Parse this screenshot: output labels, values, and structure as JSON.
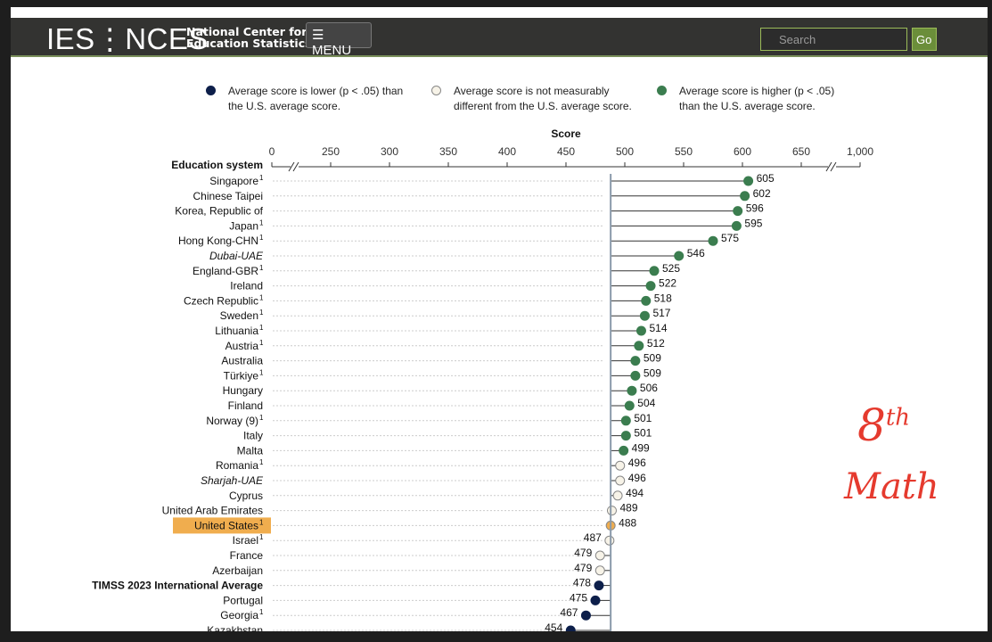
{
  "header": {
    "logo": "IES⋮NCES",
    "org_line1": "National Center for",
    "org_line2": "Education Statistics",
    "menu_label": "☰ MENU",
    "search_placeholder": "Search",
    "go_label": "Go"
  },
  "legend": [
    {
      "text1": "Average score is lower (p < .05) than",
      "text2": "the U.S. average score.",
      "color": "#0d1f4a"
    },
    {
      "text1": "Average score is not measurably",
      "text2": "different from the U.S. average score.",
      "color": "#f7f3e8"
    },
    {
      "text1": "Average score is higher (p < .05)",
      "text2": "than the U.S. average score.",
      "color": "#3b7d4f"
    }
  ],
  "annotation": {
    "line1": "8",
    "sup": "th",
    "line2": "Math"
  },
  "chart_data": {
    "type": "dot",
    "title": "Score",
    "ylabel": "Education system",
    "xticks": [
      "0",
      "250",
      "300",
      "350",
      "400",
      "450",
      "500",
      "550",
      "600",
      "650",
      "1,000"
    ],
    "xlim": [
      250,
      650
    ],
    "reference": "United States",
    "reference_value": 488,
    "rows": [
      {
        "name": "Singapore",
        "sup": "1",
        "value": 605,
        "sig": "higher"
      },
      {
        "name": "Chinese Taipei",
        "sup": "",
        "value": 602,
        "sig": "higher"
      },
      {
        "name": "Korea, Republic of",
        "sup": "",
        "value": 596,
        "sig": "higher"
      },
      {
        "name": "Japan",
        "sup": "1",
        "value": 595,
        "sig": "higher"
      },
      {
        "name": "Hong Kong-CHN",
        "sup": "1",
        "value": 575,
        "sig": "higher"
      },
      {
        "name": "Dubai-UAE",
        "sup": "",
        "value": 546,
        "sig": "higher",
        "italic": true
      },
      {
        "name": "England-GBR",
        "sup": "1",
        "value": 525,
        "sig": "higher"
      },
      {
        "name": "Ireland",
        "sup": "",
        "value": 522,
        "sig": "higher"
      },
      {
        "name": "Czech Republic",
        "sup": "1",
        "value": 518,
        "sig": "higher"
      },
      {
        "name": "Sweden",
        "sup": "1",
        "value": 517,
        "sig": "higher"
      },
      {
        "name": "Lithuania",
        "sup": "1",
        "value": 514,
        "sig": "higher"
      },
      {
        "name": "Austria",
        "sup": "1",
        "value": 512,
        "sig": "higher"
      },
      {
        "name": "Australia",
        "sup": "",
        "value": 509,
        "sig": "higher"
      },
      {
        "name": "Türkiye",
        "sup": "1",
        "value": 509,
        "sig": "higher"
      },
      {
        "name": "Hungary",
        "sup": "",
        "value": 506,
        "sig": "higher"
      },
      {
        "name": "Finland",
        "sup": "",
        "value": 504,
        "sig": "higher"
      },
      {
        "name": "Norway (9)",
        "sup": "1",
        "value": 501,
        "sig": "higher"
      },
      {
        "name": "Italy",
        "sup": "",
        "value": 501,
        "sig": "higher"
      },
      {
        "name": "Malta",
        "sup": "",
        "value": 499,
        "sig": "higher"
      },
      {
        "name": "Romania",
        "sup": "1",
        "value": 496,
        "sig": "same"
      },
      {
        "name": "Sharjah-UAE",
        "sup": "",
        "value": 496,
        "sig": "same",
        "italic": true
      },
      {
        "name": "Cyprus",
        "sup": "",
        "value": 494,
        "sig": "same"
      },
      {
        "name": "United Arab Emirates",
        "sup": "",
        "value": 489,
        "sig": "same"
      },
      {
        "name": "United States",
        "sup": "1",
        "value": 488,
        "sig": "us"
      },
      {
        "name": "Israel",
        "sup": "1",
        "value": 487,
        "sig": "same"
      },
      {
        "name": "France",
        "sup": "",
        "value": 479,
        "sig": "same"
      },
      {
        "name": "Azerbaijan",
        "sup": "",
        "value": 479,
        "sig": "same"
      },
      {
        "name": "TIMSS 2023 International Average",
        "sup": "",
        "value": 478,
        "sig": "lower",
        "bold": true
      },
      {
        "name": "Portugal",
        "sup": "",
        "value": 475,
        "sig": "lower"
      },
      {
        "name": "Georgia",
        "sup": "1",
        "value": 467,
        "sig": "lower"
      },
      {
        "name": "Kazakhstan",
        "sup": "",
        "value": 454,
        "sig": "lower"
      }
    ],
    "colors": {
      "higher": "#3b7d4f",
      "same": "#f7f3e8",
      "lower": "#0d1f4a",
      "us": "#f0ad4e"
    }
  }
}
